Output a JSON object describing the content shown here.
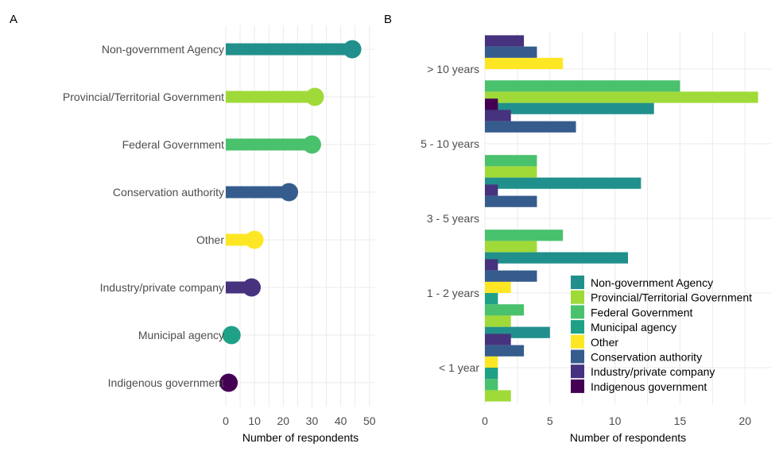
{
  "chart_data": [
    {
      "type": "lollipop",
      "panel_label": "A",
      "xlabel": "Number of respondents",
      "xlim": [
        0,
        52
      ],
      "xticks": [
        0,
        10,
        20,
        30,
        40,
        50
      ],
      "grid": true,
      "categories": [
        {
          "label": "Non-government Agency",
          "value": 44,
          "color": "#21908c"
        },
        {
          "label": "Provincial/Territorial Government",
          "value": 31,
          "color": "#a0da39"
        },
        {
          "label": "Federal Government",
          "value": 30,
          "color": "#4ac16d"
        },
        {
          "label": "Conservation authority",
          "value": 22,
          "color": "#365c8d"
        },
        {
          "label": "Other",
          "value": 10,
          "color": "#fde725"
        },
        {
          "label": "Industry/private company",
          "value": 9,
          "color": "#46327e"
        },
        {
          "label": "Municipal agency",
          "value": 2,
          "color": "#1fa187"
        },
        {
          "label": "Indigenous government",
          "value": 1,
          "color": "#440154"
        }
      ]
    },
    {
      "type": "bar",
      "orientation": "horizontal",
      "panel_label": "B",
      "xlabel": "Number of respondents",
      "xlim": [
        0,
        22
      ],
      "xticks": [
        0,
        5,
        10,
        15,
        20
      ],
      "grid": true,
      "legend_position": "bottom-right",
      "categories": [
        "> 10 years",
        "5 - 10 years",
        "3 - 5 years",
        "1 - 2 years",
        "< 1 year"
      ],
      "series": [
        {
          "name": "Non-government Agency",
          "color": "#21908c",
          "values": [
            13,
            12,
            11,
            5,
            0
          ]
        },
        {
          "name": "Provincial/Territorial Government",
          "color": "#a0da39",
          "values": [
            21,
            4,
            4,
            2,
            2
          ]
        },
        {
          "name": "Federal Government",
          "color": "#4ac16d",
          "values": [
            15,
            4,
            6,
            3,
            1
          ]
        },
        {
          "name": "Municipal agency",
          "color": "#1fa187",
          "values": [
            0,
            0,
            0,
            1,
            1
          ]
        },
        {
          "name": "Other",
          "color": "#fde725",
          "values": [
            6,
            0,
            0,
            2,
            1
          ]
        },
        {
          "name": "Conservation authority",
          "color": "#365c8d",
          "values": [
            4,
            7,
            4,
            4,
            3
          ]
        },
        {
          "name": "Industry/private company",
          "color": "#46327e",
          "values": [
            3,
            2,
            1,
            1,
            2
          ]
        },
        {
          "name": "Indigenous government",
          "color": "#440154",
          "values": [
            0,
            1,
            0,
            0,
            0
          ]
        }
      ],
      "legend_order": [
        "Non-government Agency",
        "Provincial/Territorial Government",
        "Federal Government",
        "Municipal agency",
        "Other",
        "Conservation authority",
        "Industry/private company",
        "Indigenous government"
      ]
    }
  ]
}
